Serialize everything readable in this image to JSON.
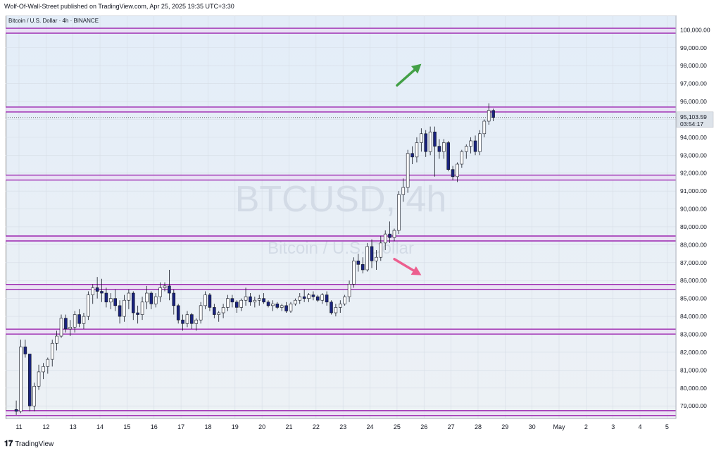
{
  "header": {
    "text": "Wolf-Of-Wall-Street published on TradingView.com, Apr 25, 2025 19:35 UTC+3:30"
  },
  "footer": {
    "logo_icon": "tradingview-logo-icon",
    "text": "TradingView"
  },
  "chart_data": {
    "type": "candlestick",
    "title": "Bitcoin / U.S. Dollar · 4h · BINANCE",
    "watermark": {
      "symbol": "BTCUSD, 4h",
      "name": "Bitcoin / U.S. Dollar"
    },
    "price_axis": {
      "ylim": [
        78300,
        100800
      ],
      "ticks": [
        79000,
        80000,
        81000,
        82000,
        83000,
        84000,
        85000,
        86000,
        87000,
        88000,
        89000,
        90000,
        91000,
        92000,
        93000,
        94000,
        95000,
        96000,
        97000,
        98000,
        99000,
        100000
      ],
      "tick_labels": [
        "79,000.00",
        "80,000.00",
        "81,000.00",
        "82,000.00",
        "83,000.00",
        "84,000.00",
        "85,000.00",
        "86,000.00",
        "87,000.00",
        "88,000.00",
        "89,000.00",
        "90,000.00",
        "91,000.00",
        "92,000.00",
        "93,000.00",
        "94,000.00",
        "95,000.00",
        "96,000.00",
        "97,000.00",
        "98,000.00",
        "99,000.00",
        "100,000.00"
      ]
    },
    "time_axis": {
      "labels": [
        "11",
        "12",
        "13",
        "14",
        "15",
        "16",
        "17",
        "18",
        "19",
        "20",
        "21",
        "22",
        "23",
        "24",
        "25",
        "26",
        "27",
        "28",
        "29",
        "30",
        "May",
        "2",
        "3",
        "4",
        "5"
      ],
      "first_label_day": 11,
      "candles_per_day": 6
    },
    "current_price": {
      "value": 95103.59,
      "label": "95,103.59",
      "countdown": "03:54:17",
      "color": "#131722"
    },
    "horizontal_levels": [
      {
        "price": 99950,
        "color": "#9c27b0"
      },
      {
        "price": 95550,
        "color": "#9c27b0"
      },
      {
        "price": 91750,
        "color": "#9c27b0"
      },
      {
        "price": 88350,
        "color": "#9c27b0"
      },
      {
        "price": 85650,
        "color": "#9c27b0"
      },
      {
        "price": 83150,
        "color": "#9c27b0"
      },
      {
        "price": 78600,
        "color": "#9c27b0"
      }
    ],
    "arrows": [
      {
        "direction": "up",
        "color": "#43a047",
        "from": [
          25.0,
          96900
        ],
        "to": [
          25.9,
          98100
        ]
      },
      {
        "direction": "down",
        "color": "#ec5f8f",
        "from": [
          24.9,
          87200
        ],
        "to": [
          25.9,
          86300
        ]
      }
    ],
    "colors": {
      "up": "#ffffff",
      "down": "#1a237e",
      "wick": "#131722"
    },
    "candles": [
      [
        78800,
        79300,
        78500,
        78700
      ],
      [
        78700,
        82700,
        78600,
        82300
      ],
      [
        82300,
        82700,
        81700,
        81900
      ],
      [
        81900,
        81900,
        78700,
        79000
      ],
      [
        79000,
        80300,
        78700,
        80100
      ],
      [
        80100,
        81300,
        79900,
        80900
      ],
      [
        80900,
        81400,
        80500,
        81200
      ],
      [
        81200,
        81700,
        80800,
        81600
      ],
      [
        81600,
        82700,
        81200,
        82500
      ],
      [
        82500,
        83200,
        82100,
        82900
      ],
      [
        82900,
        84100,
        82800,
        83900
      ],
      [
        83900,
        84100,
        83100,
        83300
      ],
      [
        83300,
        83800,
        82900,
        83400
      ],
      [
        83400,
        84300,
        83100,
        84100
      ],
      [
        84100,
        84400,
        83400,
        83600
      ],
      [
        83600,
        84200,
        83300,
        84000
      ],
      [
        84000,
        85400,
        83800,
        85200
      ],
      [
        85200,
        85800,
        84700,
        85600
      ],
      [
        85600,
        86200,
        85000,
        85400
      ],
      [
        85400,
        86100,
        84800,
        85300
      ],
      [
        85300,
        85600,
        84500,
        84800
      ],
      [
        84800,
        85300,
        84400,
        85000
      ],
      [
        85000,
        85500,
        84300,
        84600
      ],
      [
        84600,
        84900,
        83600,
        84000
      ],
      [
        84000,
        85200,
        83700,
        84900
      ],
      [
        84900,
        85500,
        84400,
        85300
      ],
      [
        85300,
        85400,
        83800,
        84200
      ],
      [
        84200,
        84600,
        83600,
        84100
      ],
      [
        84100,
        85100,
        83800,
        84800
      ],
      [
        84800,
        85700,
        84400,
        85300
      ],
      [
        85300,
        85400,
        84400,
        84700
      ],
      [
        84700,
        85300,
        84500,
        85100
      ],
      [
        85100,
        85900,
        84800,
        85600
      ],
      [
        85600,
        85900,
        85400,
        85700
      ],
      [
        85700,
        86600,
        84900,
        85300
      ],
      [
        85300,
        85500,
        84100,
        84600
      ],
      [
        84600,
        84700,
        83600,
        83800
      ],
      [
        83800,
        84100,
        83200,
        83600
      ],
      [
        83600,
        84300,
        83400,
        84100
      ],
      [
        84100,
        84200,
        83300,
        83600
      ],
      [
        83600,
        83900,
        83200,
        83800
      ],
      [
        83800,
        84800,
        83600,
        84600
      ],
      [
        84600,
        85400,
        84400,
        85200
      ],
      [
        85200,
        85300,
        84300,
        84500
      ],
      [
        84500,
        84700,
        83900,
        84100
      ],
      [
        84100,
        84300,
        83700,
        84200
      ],
      [
        84200,
        84700,
        83900,
        84500
      ],
      [
        84500,
        85200,
        84300,
        85000
      ],
      [
        85000,
        85200,
        84500,
        84800
      ],
      [
        84800,
        84900,
        84200,
        84500
      ],
      [
        84500,
        85000,
        84300,
        84900
      ],
      [
        84900,
        85600,
        84600,
        85100
      ],
      [
        85100,
        85300,
        84600,
        84800
      ],
      [
        84800,
        85100,
        84500,
        84900
      ],
      [
        84900,
        85200,
        84600,
        85000
      ],
      [
        85000,
        85300,
        84700,
        84800
      ],
      [
        84800,
        84900,
        84500,
        84600
      ],
      [
        84600,
        84900,
        84300,
        84700
      ],
      [
        84700,
        84800,
        84400,
        84500
      ],
      [
        84500,
        84700,
        84300,
        84600
      ],
      [
        84600,
        84800,
        84200,
        84300
      ],
      [
        84300,
        84800,
        84200,
        84700
      ],
      [
        84700,
        85000,
        84600,
        84900
      ],
      [
        84900,
        85300,
        84700,
        85100
      ],
      [
        85100,
        85500,
        84800,
        85000
      ],
      [
        85000,
        85300,
        84800,
        85200
      ],
      [
        85200,
        85400,
        84900,
        85100
      ],
      [
        85100,
        85200,
        84800,
        84900
      ],
      [
        84900,
        85300,
        84700,
        85200
      ],
      [
        85200,
        85400,
        84600,
        84800
      ],
      [
        84800,
        84900,
        84100,
        84200
      ],
      [
        84200,
        84700,
        84000,
        84500
      ],
      [
        84500,
        84900,
        84200,
        84700
      ],
      [
        84700,
        85200,
        84600,
        85100
      ],
      [
        85100,
        86000,
        84800,
        85800
      ],
      [
        85800,
        87300,
        85600,
        87100
      ],
      [
        87100,
        87500,
        86500,
        86900
      ],
      [
        86900,
        87300,
        86400,
        86600
      ],
      [
        86600,
        88100,
        86500,
        87900
      ],
      [
        87900,
        88300,
        86700,
        87100
      ],
      [
        87100,
        87700,
        86600,
        87300
      ],
      [
        87300,
        88500,
        87100,
        88100
      ],
      [
        88100,
        88800,
        87700,
        88600
      ],
      [
        88600,
        89300,
        88100,
        88400
      ],
      [
        88400,
        88900,
        88200,
        88800
      ],
      [
        88800,
        91000,
        88600,
        90800
      ],
      [
        90800,
        91700,
        90400,
        91200
      ],
      [
        91200,
        93300,
        90900,
        93100
      ],
      [
        93100,
        93500,
        92500,
        92900
      ],
      [
        92900,
        94000,
        92600,
        93700
      ],
      [
        93700,
        94500,
        93200,
        94200
      ],
      [
        94200,
        94400,
        92900,
        93200
      ],
      [
        93200,
        94600,
        93000,
        94300
      ],
      [
        94300,
        94600,
        91800,
        93500
      ],
      [
        93500,
        93900,
        92800,
        93200
      ],
      [
        93200,
        93900,
        92800,
        93700
      ],
      [
        93700,
        93800,
        92100,
        92200
      ],
      [
        92200,
        92400,
        91600,
        91800
      ],
      [
        91800,
        92600,
        91500,
        92500
      ],
      [
        92500,
        93300,
        92300,
        93200
      ],
      [
        93200,
        93600,
        92800,
        93500
      ],
      [
        93500,
        94000,
        93100,
        93800
      ],
      [
        93800,
        94100,
        93000,
        93200
      ],
      [
        93200,
        94400,
        93000,
        94200
      ],
      [
        94200,
        95000,
        94000,
        94900
      ],
      [
        94900,
        95900,
        94700,
        95500
      ],
      [
        95500,
        95600,
        94900,
        95104
      ]
    ]
  }
}
